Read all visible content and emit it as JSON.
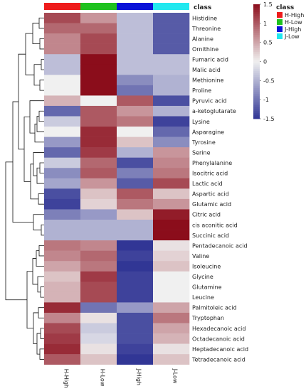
{
  "chart_data": {
    "type": "heatmap",
    "columns": [
      "H-High",
      "H-Low",
      "J-High",
      "J-Low"
    ],
    "rows": [
      "Histidine",
      "Threonine",
      "Alanine",
      "Ornithine",
      "Fumaric acid",
      "Malic acid",
      "Methionine",
      "Proline",
      "Pyruvic acid",
      "a-ketoglutarate",
      "Lysine",
      "Asparagine",
      "Tyrosine",
      "Serine",
      "Phenylalanine",
      "Isocitric acid",
      "Lactic acid",
      "Aspartic acid",
      "Glutamic acid",
      "Citric acid",
      "cis aconitic acid",
      "Succinic acid",
      "Pentadecanoic acid",
      "Valine",
      "Isoleucine",
      "Glycine",
      "Glutamine",
      "Leucine",
      "Palmitoleic acid",
      "Tryptophan",
      "Hexadecanoic acid",
      "Octadecanoic acid",
      "Heptadecanoic acid",
      "Tetradecanoic acid"
    ],
    "values": [
      [
        1.1,
        0.6,
        -0.4,
        -1.2
      ],
      [
        0.9,
        0.9,
        -0.4,
        -1.2
      ],
      [
        0.7,
        1.1,
        -0.4,
        -1.2
      ],
      [
        0.7,
        1.1,
        -0.4,
        -1.2
      ],
      [
        -0.4,
        1.5,
        -0.4,
        -0.4
      ],
      [
        -0.4,
        1.5,
        -0.4,
        -0.4
      ],
      [
        0.0,
        1.5,
        -0.8,
        -0.5
      ],
      [
        0.0,
        1.5,
        -1.0,
        -0.5
      ],
      [
        0.4,
        0.0,
        1.0,
        -1.3
      ],
      [
        -1.1,
        1.0,
        0.6,
        -0.5
      ],
      [
        -0.3,
        1.0,
        0.8,
        -1.4
      ],
      [
        0.0,
        1.3,
        0.0,
        -1.1
      ],
      [
        -0.7,
        1.3,
        0.3,
        -0.8
      ],
      [
        -1.1,
        1.2,
        -0.5,
        0.6
      ],
      [
        -0.3,
        0.9,
        -1.3,
        0.7
      ],
      [
        -0.8,
        1.0,
        -0.9,
        0.8
      ],
      [
        -0.6,
        0.6,
        -1.2,
        1.1
      ],
      [
        -1.3,
        0.3,
        1.0,
        0.3
      ],
      [
        -1.4,
        0.2,
        0.8,
        0.6
      ],
      [
        -0.9,
        -0.7,
        0.3,
        1.4
      ],
      [
        -0.5,
        -0.5,
        -0.5,
        1.5
      ],
      [
        -0.5,
        -0.5,
        -0.5,
        1.5
      ],
      [
        0.8,
        0.7,
        -1.5,
        0.1
      ],
      [
        0.7,
        0.9,
        -1.4,
        0.2
      ],
      [
        0.5,
        0.8,
        -1.5,
        0.3
      ],
      [
        0.3,
        1.2,
        -1.4,
        0.0
      ],
      [
        0.4,
        1.1,
        -1.4,
        0.0
      ],
      [
        0.4,
        1.1,
        -1.4,
        0.0
      ],
      [
        1.3,
        -1.0,
        -0.7,
        0.5
      ],
      [
        0.7,
        0.1,
        -1.3,
        0.8
      ],
      [
        1.1,
        -0.3,
        -1.3,
        0.5
      ],
      [
        1.2,
        -0.2,
        -1.3,
        0.4
      ],
      [
        1.3,
        0.1,
        -1.4,
        0.1
      ],
      [
        1.0,
        0.3,
        -1.5,
        0.3
      ]
    ],
    "color_scale": {
      "min": -1.5,
      "max": 1.5,
      "ticks": [
        1.5,
        1,
        0.5,
        0,
        -0.5,
        -1,
        -1.5
      ],
      "low_color": "#313695",
      "mid_color": "#f0f0f0",
      "high_color": "#8b0d1b"
    },
    "class_annotation": {
      "title": "class",
      "entries": [
        {
          "label": "H-High",
          "color": "#ee1c1c"
        },
        {
          "label": "H-Low",
          "color": "#1fc21f"
        },
        {
          "label": "J-High",
          "color": "#0a12d8"
        },
        {
          "label": "J-Low",
          "color": "#22e8ef"
        }
      ]
    },
    "legend_title": "class",
    "legend_position": "top-right"
  }
}
